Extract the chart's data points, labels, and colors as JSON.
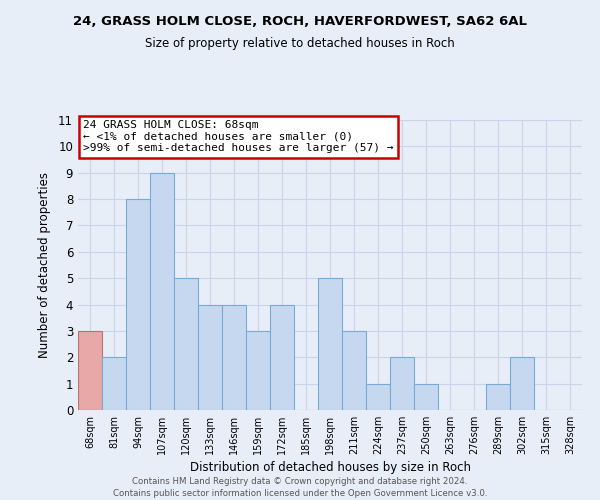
{
  "title1": "24, GRASS HOLM CLOSE, ROCH, HAVERFORDWEST, SA62 6AL",
  "title2": "Size of property relative to detached houses in Roch",
  "xlabel": "Distribution of detached houses by size in Roch",
  "ylabel": "Number of detached properties",
  "bar_labels": [
    "68sqm",
    "81sqm",
    "94sqm",
    "107sqm",
    "120sqm",
    "133sqm",
    "146sqm",
    "159sqm",
    "172sqm",
    "185sqm",
    "198sqm",
    "211sqm",
    "224sqm",
    "237sqm",
    "250sqm",
    "263sqm",
    "276sqm",
    "289sqm",
    "302sqm",
    "315sqm",
    "328sqm"
  ],
  "bar_values": [
    3,
    2,
    8,
    9,
    5,
    4,
    4,
    3,
    4,
    0,
    5,
    3,
    1,
    2,
    1,
    0,
    0,
    1,
    2,
    0,
    0
  ],
  "bar_color": "#c5d8f0",
  "bar_edge_color": "#7aaad4",
  "highlight_bar_index": 0,
  "highlight_bar_color": "#e8a8a8",
  "highlight_bar_edge_color": "#c07070",
  "annotation_title": "24 GRASS HOLM CLOSE: 68sqm",
  "annotation_line1": "← <1% of detached houses are smaller (0)",
  "annotation_line2": ">99% of semi-detached houses are larger (57) →",
  "annotation_box_color": "#ffffff",
  "annotation_box_edge_color": "#cc0000",
  "ylim": [
    0,
    11
  ],
  "yticks": [
    0,
    1,
    2,
    3,
    4,
    5,
    6,
    7,
    8,
    9,
    10,
    11
  ],
  "footer1": "Contains HM Land Registry data © Crown copyright and database right 2024.",
  "footer2": "Contains public sector information licensed under the Open Government Licence v3.0.",
  "grid_color": "#c8d4e8",
  "background_color": "#e8eef8"
}
